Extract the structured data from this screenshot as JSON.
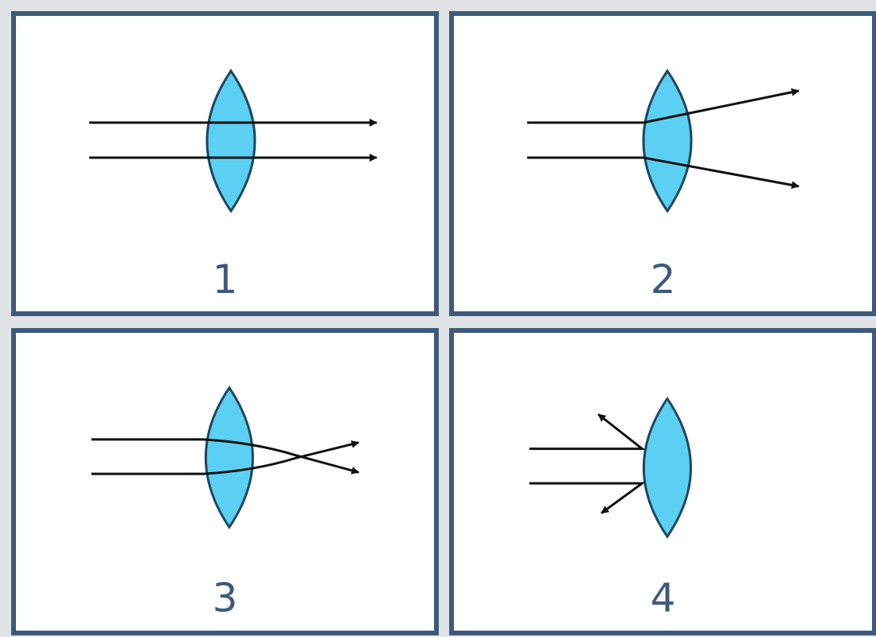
{
  "panels": [
    {
      "label": "1"
    },
    {
      "label": "2"
    },
    {
      "label": "3"
    },
    {
      "label": "4"
    }
  ],
  "colors": {
    "background": "#dfe3e6",
    "panel_border": "#3d5a7a",
    "lens_fill": "#5bd0f2",
    "lens_stroke": "#1f4660",
    "ray": "#111111",
    "label": "#3d5a7a"
  }
}
